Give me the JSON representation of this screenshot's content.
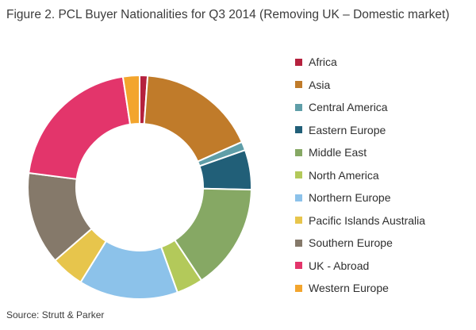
{
  "title": "Figure 2. PCL Buyer Nationalities for Q3 2014 (Removing UK – Domestic market)",
  "source": "Source: Strutt & Parker",
  "chart_data": {
    "type": "pie",
    "variant": "donut",
    "legend_position": "right",
    "categories": [
      "Africa",
      "Asia",
      "Central America",
      "Eastern Europe",
      "Middle East",
      "North America",
      "Northern Europe",
      "Pacific Islands Australia",
      "Southern Europe",
      "UK - Abroad",
      "Western Europe"
    ],
    "values": [
      1.2,
      18.0,
      1.3,
      6.0,
      16.0,
      4.0,
      15.0,
      5.0,
      14.0,
      21.5,
      2.5
    ],
    "colors": [
      "#b5213e",
      "#c07b2a",
      "#5f9ea8",
      "#215f78",
      "#86a864",
      "#b3c95a",
      "#8cc2ea",
      "#e7c54c",
      "#85796a",
      "#e3356b",
      "#f3a52d"
    ]
  }
}
